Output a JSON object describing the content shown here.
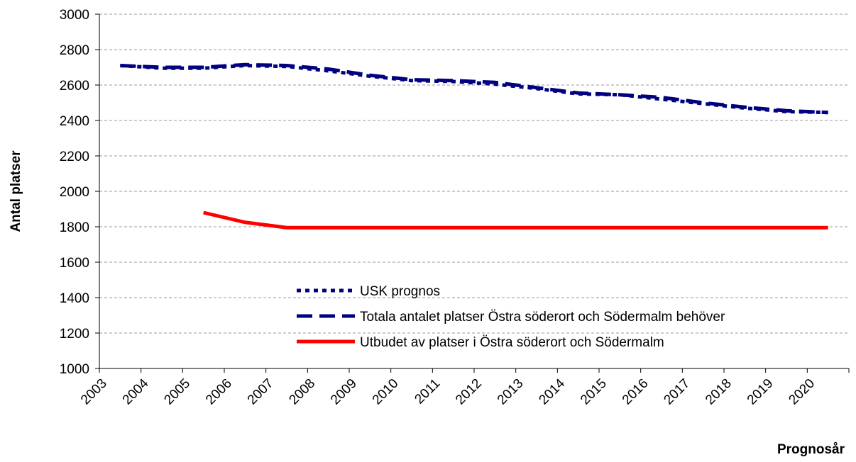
{
  "chart_data": {
    "type": "line",
    "x_label": "Prognosår",
    "y_label": "Antal platser",
    "categories": [
      "2003",
      "2004",
      "2005",
      "2006",
      "2007",
      "2008",
      "2009",
      "2010",
      "2011",
      "2012",
      "2013",
      "2014",
      "2015",
      "2016",
      "2017",
      "2018",
      "2019",
      "2020"
    ],
    "series": [
      {
        "name": "USK prognos",
        "color": "#000080",
        "dash": "6,6",
        "values": [
          2710,
          2695,
          2695,
          2710,
          2705,
          2680,
          2650,
          2625,
          2620,
          2605,
          2580,
          2550,
          2545,
          2520,
          2495,
          2470,
          2450,
          2445
        ]
      },
      {
        "name": "Totala antalet platser Östra söderort och Södermalm behöver",
        "color": "#000080",
        "dash": "22,10",
        "values": [
          2710,
          2700,
          2700,
          2715,
          2710,
          2690,
          2655,
          2630,
          2625,
          2615,
          2585,
          2555,
          2545,
          2530,
          2500,
          2475,
          2455,
          2445
        ]
      },
      {
        "name": "Utbudet av platser i Östra söderort och Södermalm",
        "color": "#ff0000",
        "dash": "none",
        "values": [
          null,
          null,
          1880,
          1825,
          1795,
          1795,
          1795,
          1795,
          1795,
          1795,
          1795,
          1795,
          1795,
          1795,
          1795,
          1795,
          1795,
          1795
        ]
      }
    ],
    "ylim": [
      1000,
      3000
    ],
    "yticks": [
      1000,
      1200,
      1400,
      1600,
      1800,
      2000,
      2200,
      2400,
      2600,
      2800,
      3000
    ],
    "grid": true
  }
}
